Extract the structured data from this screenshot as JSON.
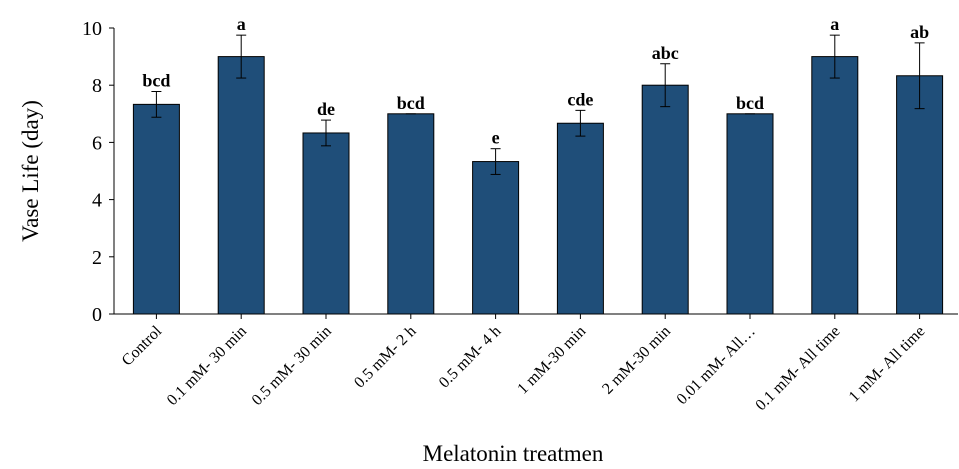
{
  "chart_data": {
    "type": "bar",
    "title": "",
    "xlabel": "Melatonin treatmen",
    "ylabel": "Vase Life (day)",
    "ylim": [
      0,
      10
    ],
    "yticks": [
      0,
      2,
      4,
      6,
      8,
      10
    ],
    "grid": false,
    "legend": "none",
    "bar_color": "#1F4E79",
    "categories": [
      "Control",
      "0.1 mM- 30 min",
      "0.5 mM- 30 min",
      "0.5 mM- 2 h",
      "0.5 mM- 4 h",
      "1 mM-30 min",
      "2 mM-30 min",
      "0.01 mM- All…",
      "0.1 mM- All time",
      "1 mM- All time"
    ],
    "values": [
      7.33,
      9.0,
      6.33,
      7.0,
      5.33,
      6.67,
      8.0,
      7.0,
      9.0,
      8.33
    ],
    "errors": [
      0.45,
      0.75,
      0.45,
      0.0,
      0.45,
      0.45,
      0.75,
      0.0,
      0.75,
      1.15
    ],
    "letters": [
      "bcd",
      "a",
      "de",
      "bcd",
      "e",
      "cde",
      "abc",
      "bcd",
      "a",
      "ab"
    ]
  }
}
